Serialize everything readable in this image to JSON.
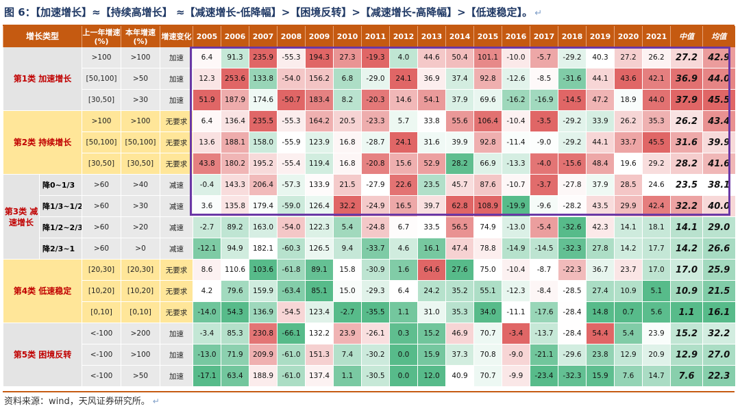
{
  "title": "图 6：【加速增长】≈【持续高增长】 ≈【减速增长-低降幅】>【困境反转】>【减速增长-高降幅】>【低速稳定】。",
  "return_mark": "↵",
  "source": "资料来源：wind，天风证券研究所。",
  "headers": {
    "type": "增长类型",
    "prev": "上一年增速(%)",
    "cur": "本年增速(%)",
    "change": "增速变化",
    "years": [
      "2005",
      "2006",
      "2007",
      "2008",
      "2009",
      "2010",
      "2011",
      "2012",
      "2013",
      "2014",
      "2015",
      "2016",
      "2017",
      "2018",
      "2019",
      "2020",
      "2021"
    ],
    "median": "中值",
    "mean": "均值"
  },
  "groups": [
    {
      "name": "第1类  加速增长",
      "rows": [
        0,
        1,
        2
      ]
    },
    {
      "name": "第2类  持续增长",
      "rows": [
        3,
        4,
        5
      ]
    },
    {
      "name": "第3类 减速增长",
      "rows": [
        6,
        7,
        8,
        9
      ]
    },
    {
      "name": "第4类  低速稳定",
      "rows": [
        10,
        11,
        12
      ]
    },
    {
      "name": "第5类  困境反转",
      "rows": [
        13,
        14,
        15
      ]
    }
  ],
  "rows": [
    {
      "group": 1,
      "sub": "",
      "prev": ">100",
      "cur": ">100",
      "change": "加速",
      "values": [
        6.4,
        91.3,
        235.9,
        -55.3,
        194.3,
        27.3,
        -19.3,
        4.0,
        44.6,
        50.4,
        101.1,
        -10.0,
        -5.7,
        -29.2,
        40.3,
        27.2,
        26.2
      ],
      "median": "27.2",
      "mean": "42.9"
    },
    {
      "group": 1,
      "sub": "",
      "prev": "[50,100]",
      "cur": ">50",
      "change": "加速",
      "values": [
        12.3,
        253.6,
        133.8,
        -54.0,
        156.2,
        6.8,
        -29.0,
        24.1,
        36.9,
        37.4,
        92.8,
        -12.6,
        -8.5,
        -31.6,
        44.1,
        43.6,
        42.1
      ],
      "median": "36.9",
      "mean": "44.0"
    },
    {
      "group": 1,
      "sub": "",
      "prev": "[30,50]",
      "cur": ">30",
      "change": "加速",
      "values": [
        51.9,
        187.9,
        174.6,
        -50.7,
        183.4,
        8.2,
        -20.3,
        14.6,
        54.1,
        37.9,
        69.6,
        -16.2,
        -16.9,
        -14.5,
        47.2,
        18.9,
        44.0
      ],
      "median": "37.9",
      "mean": "45.5"
    },
    {
      "group": 2,
      "sub": "",
      "prev": ">100",
      "cur": ">100",
      "change": "无要求",
      "values": [
        6.4,
        136.4,
        235.5,
        -55.3,
        164.2,
        20.5,
        -23.3,
        5.7,
        33.8,
        55.6,
        106.4,
        -10.4,
        -3.5,
        -29.2,
        33.9,
        26.2,
        35.3
      ],
      "median": "26.2",
      "mean": "43.4"
    },
    {
      "group": 2,
      "sub": "",
      "prev": "[50,100]",
      "cur": "[50,100]",
      "change": "无要求",
      "values": [
        13.6,
        188.1,
        158.0,
        -55.9,
        123.9,
        16.8,
        -28.7,
        24.1,
        31.6,
        39.9,
        92.8,
        -11.4,
        -9.0,
        -29.2,
        44.1,
        33.7,
        45.5
      ],
      "median": "31.6",
      "mean": "39.9"
    },
    {
      "group": 2,
      "sub": "",
      "prev": "[30,50]",
      "cur": "[30,50]",
      "change": "无要求",
      "values": [
        43.8,
        180.2,
        195.2,
        -55.4,
        119.4,
        16.8,
        -20.8,
        15.6,
        52.9,
        28.2,
        66.9,
        -13.3,
        -4.0,
        -15.6,
        48.4,
        19.6,
        29.2
      ],
      "median": "28.2",
      "mean": "41.6"
    },
    {
      "group": 3,
      "sub": "降0~1/3",
      "prev": ">60",
      "cur": ">40",
      "change": "减速",
      "values": [
        -0.4,
        143.3,
        206.4,
        -57.3,
        133.9,
        21.5,
        -27.9,
        22.6,
        23.5,
        45.7,
        87.6,
        -10.7,
        -3.7,
        -27.8,
        37.9,
        28.5,
        24.6
      ],
      "median": "23.5",
      "mean": "38.1"
    },
    {
      "group": 3,
      "sub": "降1/3~1/2",
      "prev": ">60",
      "cur": ">30",
      "change": "减速",
      "values": [
        3.6,
        135.8,
        179.4,
        -59.0,
        126.4,
        32.2,
        -24.9,
        16.5,
        39.7,
        62.8,
        108.9,
        -19.9,
        -9.6,
        -28.2,
        43.5,
        29.9,
        42.4
      ],
      "median": "32.2",
      "mean": "40.0"
    },
    {
      "group": 3,
      "sub": "降1/2~2/3",
      "prev": ">60",
      "cur": ">20",
      "change": "减速",
      "values": [
        -2.7,
        89.2,
        163.0,
        -54.0,
        122.3,
        5.4,
        -24.8,
        6.7,
        33.5,
        56.5,
        74.9,
        -13.0,
        -5.4,
        -32.6,
        42.3,
        14.1,
        18.1
      ],
      "median": "14.1",
      "mean": "29.0"
    },
    {
      "group": 3,
      "sub": "降2/3~1",
      "prev": ">60",
      "cur": ">0",
      "change": "减速",
      "values": [
        -12.1,
        94.9,
        182.1,
        -60.3,
        126.5,
        9.4,
        -33.7,
        4.6,
        16.1,
        47.4,
        78.8,
        -14.9,
        -14.5,
        -32.3,
        27.8,
        14.2,
        17.7
      ],
      "median": "14.2",
      "mean": "26.6"
    },
    {
      "group": 4,
      "sub": "",
      "prev": "[20,30]",
      "cur": "[20,30]",
      "change": "无要求",
      "values": [
        8.6,
        110.6,
        103.6,
        -61.8,
        89.1,
        15.8,
        -30.9,
        1.6,
        64.6,
        27.6,
        75.0,
        -10.4,
        -8.7,
        -22.3,
        36.7,
        23.7,
        17.0
      ],
      "median": "17.0",
      "mean": "25.9"
    },
    {
      "group": 4,
      "sub": "",
      "prev": "[10,20]",
      "cur": "[10,20]",
      "change": "无要求",
      "values": [
        4.2,
        79.6,
        159.9,
        -63.4,
        85.1,
        15.0,
        -29.3,
        6.4,
        24.2,
        35.2,
        55.1,
        -12.3,
        -8.4,
        -28.5,
        27.4,
        10.9,
        5.1
      ],
      "median": "10.9",
      "mean": "21.5"
    },
    {
      "group": 4,
      "sub": "",
      "prev": "[0,10]",
      "cur": "[0,10]",
      "change": "无要求",
      "values": [
        -14.0,
        54.3,
        136.9,
        -54.5,
        123.4,
        -2.7,
        -35.5,
        1.1,
        31.0,
        35.3,
        34.0,
        -11.1,
        -17.6,
        -28.4,
        14.8,
        0.7,
        5.6
      ],
      "median": "1.1",
      "mean": "16.1"
    },
    {
      "group": 5,
      "sub": "",
      "prev": "<-100",
      "cur": ">200",
      "change": "加速",
      "values": [
        -3.4,
        85.3,
        230.8,
        -66.1,
        132.2,
        23.9,
        -26.1,
        0.3,
        15.2,
        46.9,
        70.7,
        -3.4,
        -13.7,
        -28.4,
        54.4,
        5.4,
        23.9
      ],
      "median": "15.2",
      "mean": "32.2"
    },
    {
      "group": 5,
      "sub": "",
      "prev": "<-100",
      "cur": ">100",
      "change": "加速",
      "values": [
        -13.0,
        71.9,
        209.9,
        -61.0,
        151.3,
        7.4,
        -30.2,
        0.0,
        15.9,
        37.3,
        70.8,
        -9.0,
        -21.1,
        -29.6,
        23.8,
        12.9,
        20.9
      ],
      "median": "12.9",
      "mean": "27.0"
    },
    {
      "group": 5,
      "sub": "",
      "prev": "<-100",
      "cur": ">50",
      "change": "加速",
      "values": [
        -17.1,
        63.4,
        188.9,
        -61.0,
        137.4,
        1.1,
        -30.5,
        0.0,
        12.0,
        40.9,
        70.7,
        -9.9,
        -23.4,
        -32.3,
        15.9,
        7.6,
        14.7
      ],
      "median": "7.6",
      "mean": "22.3"
    }
  ],
  "colors": {
    "header": "#c55a11",
    "high": "#e06666",
    "low": "#57bb8a",
    "mid": "#ffffff",
    "highlight_box": "#6a38a6"
  }
}
